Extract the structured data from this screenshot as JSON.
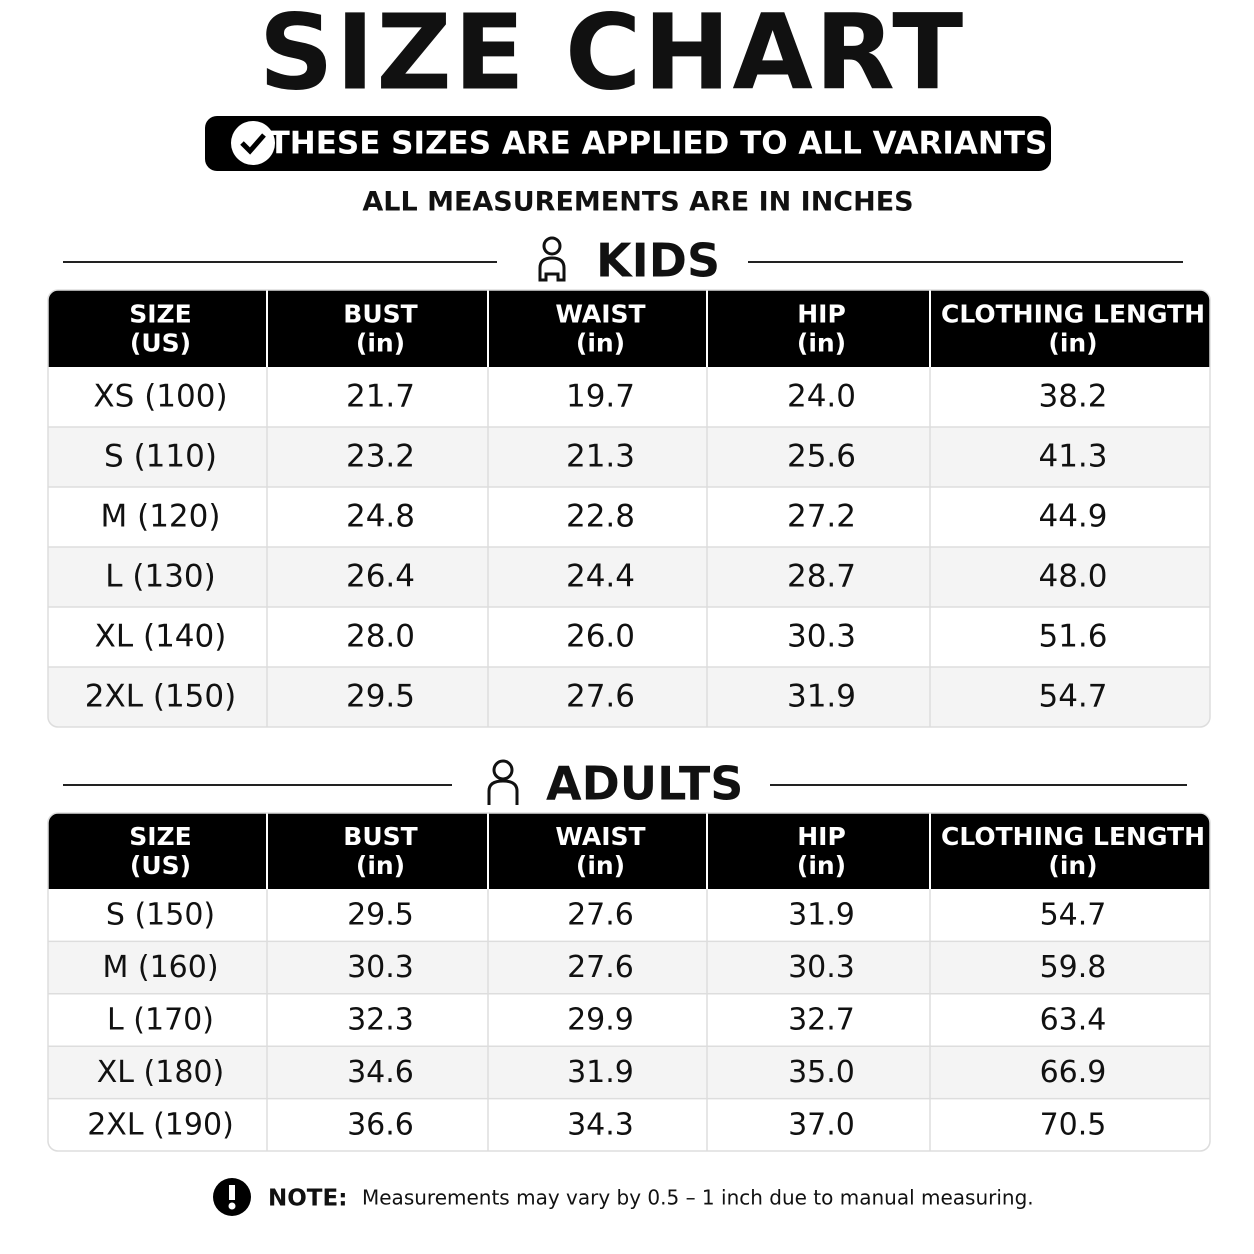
{
  "header": {
    "title": "SIZE CHART",
    "banner": "THESE SIZES ARE APPLIED TO ALL VARIANTS",
    "subtitle": "ALL MEASUREMENTS ARE IN INCHES"
  },
  "kids": {
    "heading": "KIDS",
    "columns": [
      {
        "name": "SIZE",
        "unit": "(US)"
      },
      {
        "name": "BUST",
        "unit": "(in)"
      },
      {
        "name": "WAIST",
        "unit": "(in)"
      },
      {
        "name": "HIP",
        "unit": "(in)"
      },
      {
        "name": "CLOTHING LENGTH",
        "unit": "(in)"
      }
    ],
    "rows": [
      [
        "XS (100)",
        "21.7",
        "19.7",
        "24.0",
        "38.2"
      ],
      [
        "S (110)",
        "23.2",
        "21.3",
        "25.6",
        "41.3"
      ],
      [
        "M (120)",
        "24.8",
        "22.8",
        "27.2",
        "44.9"
      ],
      [
        "L (130)",
        "26.4",
        "24.4",
        "28.7",
        "48.0"
      ],
      [
        "XL (140)",
        "28.0",
        "26.0",
        "30.3",
        "51.6"
      ],
      [
        "2XL (150)",
        "29.5",
        "27.6",
        "31.9",
        "54.7"
      ]
    ]
  },
  "adults": {
    "heading": "ADULTS",
    "columns": [
      {
        "name": "SIZE",
        "unit": "(US)"
      },
      {
        "name": "BUST",
        "unit": "(in)"
      },
      {
        "name": "WAIST",
        "unit": "(in)"
      },
      {
        "name": "HIP",
        "unit": "(in)"
      },
      {
        "name": "CLOTHING LENGTH",
        "unit": "(in)"
      }
    ],
    "rows": [
      [
        "S (150)",
        "29.5",
        "27.6",
        "31.9",
        "54.7"
      ],
      [
        "M (160)",
        "30.3",
        "27.6",
        "30.3",
        "59.8"
      ],
      [
        "L (170)",
        "32.3",
        "29.9",
        "32.7",
        "63.4"
      ],
      [
        "XL (180)",
        "34.6",
        "31.9",
        "35.0",
        "66.9"
      ],
      [
        "2XL (190)",
        "36.6",
        "34.3",
        "37.0",
        "70.5"
      ]
    ]
  },
  "note": {
    "label": "NOTE:",
    "text": "Measurements may vary by 0.5 – 1 inch due to manual measuring."
  }
}
